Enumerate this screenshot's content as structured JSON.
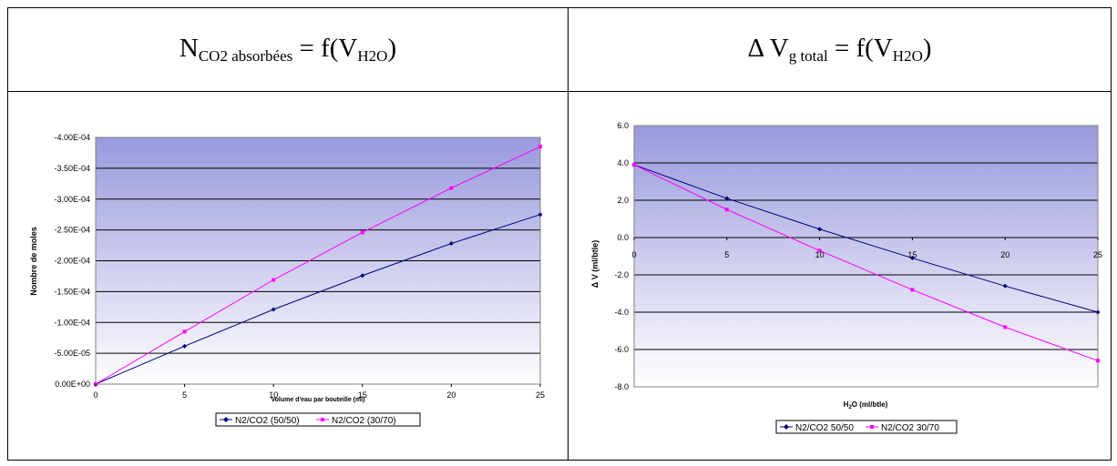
{
  "headers": {
    "left": {
      "main": "N",
      "sub": "CO2 absorbées",
      "mid": " = f(V",
      "sub2": "H2O",
      "end": ")"
    },
    "right": {
      "main": "Δ V",
      "sub": "g total",
      "mid": " = f(V",
      "sub2": "H2O",
      "end": ")"
    }
  },
  "colors": {
    "series1": "#000080",
    "series2": "#ff00ff",
    "plot_top": "#9999dd",
    "plot_bottom": "#ffffff"
  },
  "chart_data": [
    {
      "type": "line",
      "title": "",
      "xlabel": "Volume d'eau par bouteille (ml)",
      "ylabel": "Nombre de moles",
      "x": [
        0,
        5,
        10,
        15,
        20,
        25
      ],
      "xlim": [
        0,
        25
      ],
      "ylim": [
        0,
        -0.0004
      ],
      "y_reversed": true,
      "x_ticks": [
        "0",
        "5",
        "10",
        "15",
        "20",
        "25"
      ],
      "y_ticks": [
        "0.00E+00",
        "-5.00E-05",
        "-1.00E-04",
        "-1.50E-04",
        "-2.00E-04",
        "-2.50E-04",
        "-3.00E-04",
        "-3.50E-04",
        "-4.00E-04"
      ],
      "grid": true,
      "legend": "bottom",
      "series": [
        {
          "name": "N2/CO2 (50/50)",
          "marker": "diamond",
          "values": [
            0,
            -6.15e-05,
            -0.000121,
            -0.000176,
            -0.000228,
            -0.000275
          ]
        },
        {
          "name": "N2/CO2 (30/70)",
          "marker": "square",
          "values": [
            0,
            -8.5e-05,
            -0.000169,
            -0.000246,
            -0.000318,
            -0.000385
          ]
        }
      ]
    },
    {
      "type": "line",
      "title": "",
      "xlabel": "H2O (ml/btle)",
      "xlabel_parts": {
        "a": "H",
        "sub": "2",
        "b": "O (ml/btle)"
      },
      "ylabel": "Δ V (ml/btle)",
      "x": [
        0,
        5,
        10,
        15,
        20,
        25
      ],
      "xlim": [
        0,
        25
      ],
      "ylim": [
        -8,
        6
      ],
      "x_ticks": [
        "0",
        "5",
        "10",
        "15",
        "20",
        "25"
      ],
      "y_ticks": [
        "-8.0",
        "-6.0",
        "-4.0",
        "-2.0",
        "0.0",
        "2.0",
        "4.0",
        "6.0"
      ],
      "grid": true,
      "legend": "bottom",
      "series": [
        {
          "name": "N2/CO2 50/50",
          "marker": "diamond",
          "values": [
            3.9,
            2.1,
            0.45,
            -1.1,
            -2.6,
            -4.0
          ]
        },
        {
          "name": "N2/CO2 30/70",
          "marker": "square",
          "values": [
            3.9,
            1.5,
            -0.7,
            -2.8,
            -4.8,
            -6.6
          ]
        }
      ]
    }
  ]
}
